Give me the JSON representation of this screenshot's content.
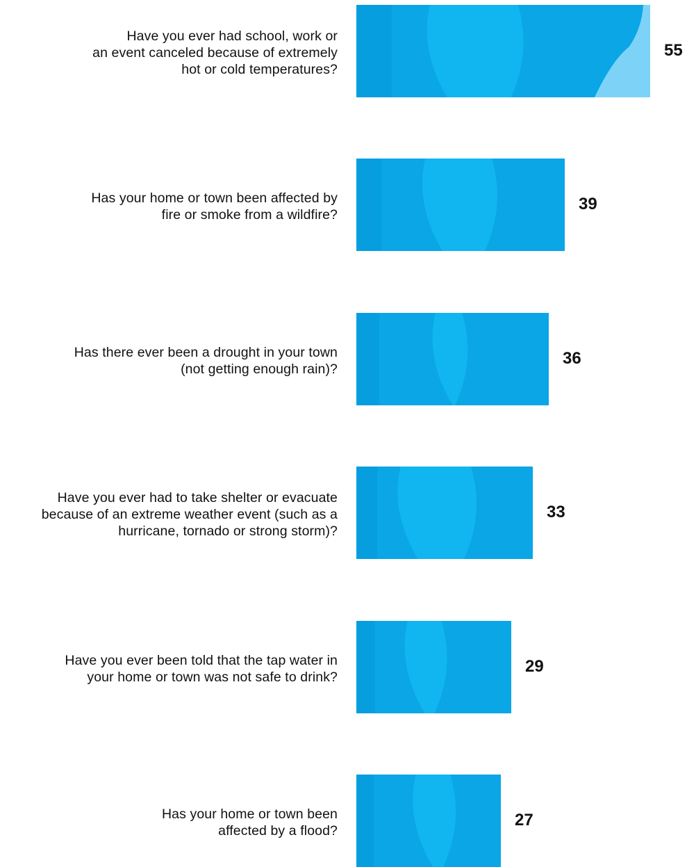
{
  "chart_data": {
    "type": "bar",
    "orientation": "horizontal",
    "categories": [
      [
        "Have you ever had school, work or",
        "an event canceled because of extremely",
        "hot or cold temperatures?"
      ],
      [
        "Has your home or town been affected by",
        "fire or smoke from a wildfire?"
      ],
      [
        "Has there ever been a drought in your town",
        "(not getting enough rain)?"
      ],
      [
        "Have you ever had to take shelter or evacuate",
        "because of an extreme weather event (such as a",
        "hurricane, tornado or strong storm)?"
      ],
      [
        "Have you ever been told that the tap water in",
        "your home or town was not safe to drink?"
      ],
      [
        "Has your home or town been",
        "affected by a flood?"
      ]
    ],
    "values": [
      55,
      39,
      36,
      33,
      29,
      27
    ],
    "xlim": [
      0,
      55
    ],
    "grid": false,
    "legend": "none"
  },
  "colors": {
    "bar_base": "#0aa6e6",
    "bar_light": "#14b9f2",
    "bar_dark": "#0595d6",
    "bar_highlight": "#7dd3f7",
    "text": "#111111"
  }
}
